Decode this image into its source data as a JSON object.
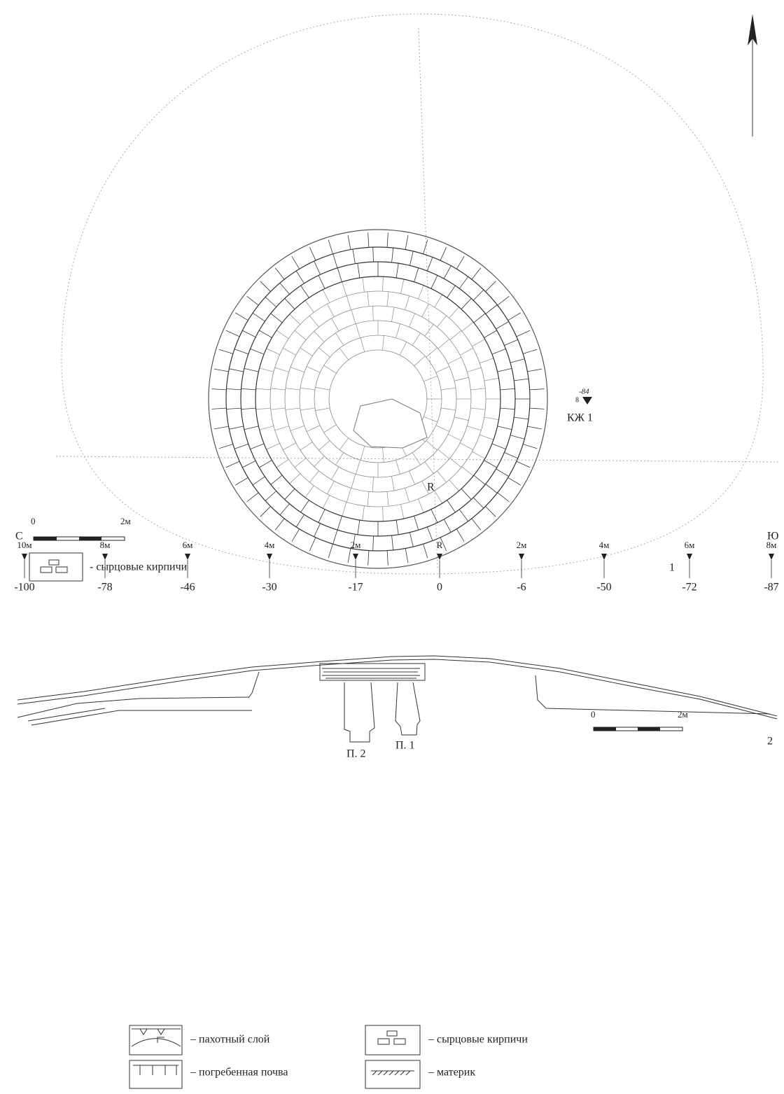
{
  "plan": {
    "marker": {
      "depth": "-84",
      "small": "8",
      "label": "КЖ 1"
    },
    "center_label": "R",
    "scale": {
      "start": "0",
      "end": "2м"
    },
    "legend": "- сырцовые кирпичи",
    "figure_number": "1"
  },
  "profile": {
    "left_direction": "С",
    "right_direction": "Ю",
    "stations": [
      {
        "distance": "10м",
        "depth": "-100"
      },
      {
        "distance": "8м",
        "depth": "-78"
      },
      {
        "distance": "6м",
        "depth": "-46"
      },
      {
        "distance": "4м",
        "depth": "-30"
      },
      {
        "distance": "2м",
        "depth": "-17"
      },
      {
        "distance": "R",
        "depth": "0"
      },
      {
        "distance": "2м",
        "depth": "-6"
      },
      {
        "distance": "4м",
        "depth": "-50"
      },
      {
        "distance": "6м",
        "depth": "-72"
      },
      {
        "distance": "8м",
        "depth": "-87"
      }
    ],
    "pits": [
      "П. 2",
      "П. 1"
    ],
    "figure_number": "2",
    "scale": {
      "start": "0",
      "end": "2м"
    },
    "legend": [
      "– пахотный слой",
      "– погребенная почва",
      "– сырцовые кирпичи",
      "– материк"
    ]
  }
}
